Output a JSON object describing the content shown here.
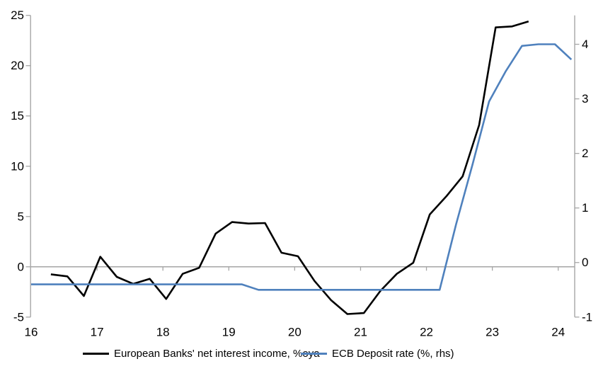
{
  "chart_data": {
    "type": "line",
    "legend_position": "bottom",
    "axis_color": "#a6a6a6",
    "background_color": "#ffffff",
    "x_axis": {
      "min": 16,
      "max": 24.25,
      "ticks": [
        16,
        17,
        18,
        19,
        20,
        21,
        22,
        23,
        24
      ],
      "tick_labels": [
        "16",
        "17",
        "18",
        "19",
        "20",
        "21",
        "22",
        "23",
        "24"
      ]
    },
    "left_axis": {
      "min": -5,
      "max": 25,
      "ticks": [
        -5,
        0,
        5,
        10,
        15,
        20,
        25
      ],
      "tick_labels": [
        "-5",
        "0",
        "5",
        "10",
        "15",
        "20",
        "25"
      ]
    },
    "right_axis": {
      "min": -1,
      "max": 4.53,
      "ticks": [
        -1,
        0,
        1,
        2,
        3,
        4
      ],
      "tick_labels": [
        "-1",
        "0",
        "1",
        "2",
        "3",
        "4"
      ]
    },
    "grid": "zero-line-only",
    "series": [
      {
        "key": "nii",
        "name": "European Banks' net interest income, %oya",
        "axis": "left",
        "color": "#000000",
        "x": [
          16.3,
          16.55,
          16.8,
          17.05,
          17.3,
          17.55,
          17.8,
          18.05,
          18.3,
          18.55,
          18.8,
          19.05,
          19.3,
          19.55,
          19.8,
          20.05,
          20.3,
          20.55,
          20.8,
          21.05,
          21.3,
          21.55,
          21.8,
          22.05,
          22.3,
          22.55,
          22.8,
          23.05,
          23.3,
          23.55
        ],
        "values": [
          -0.75,
          -0.95,
          -2.9,
          1.0,
          -1.0,
          -1.7,
          -1.2,
          -3.2,
          -0.7,
          -0.1,
          3.3,
          4.45,
          4.3,
          4.35,
          1.4,
          1.05,
          -1.4,
          -3.3,
          -4.7,
          -4.6,
          -2.4,
          -0.7,
          0.4,
          5.2,
          7.0,
          9.0,
          14.1,
          23.8,
          23.9,
          24.4
        ]
      },
      {
        "key": "ecb-deposit-rate",
        "name": "ECB Deposit rate (%, rhs)",
        "axis": "right",
        "color": "#4f81bd",
        "x": [
          16.0,
          19.2,
          19.45,
          22.2,
          22.45,
          22.7,
          22.95,
          23.2,
          23.45,
          23.7,
          23.95,
          24.2
        ],
        "values": [
          -0.4,
          -0.4,
          -0.5,
          -0.5,
          0.7,
          1.8,
          2.95,
          3.5,
          3.97,
          4.0,
          4.0,
          3.72
        ]
      }
    ]
  }
}
